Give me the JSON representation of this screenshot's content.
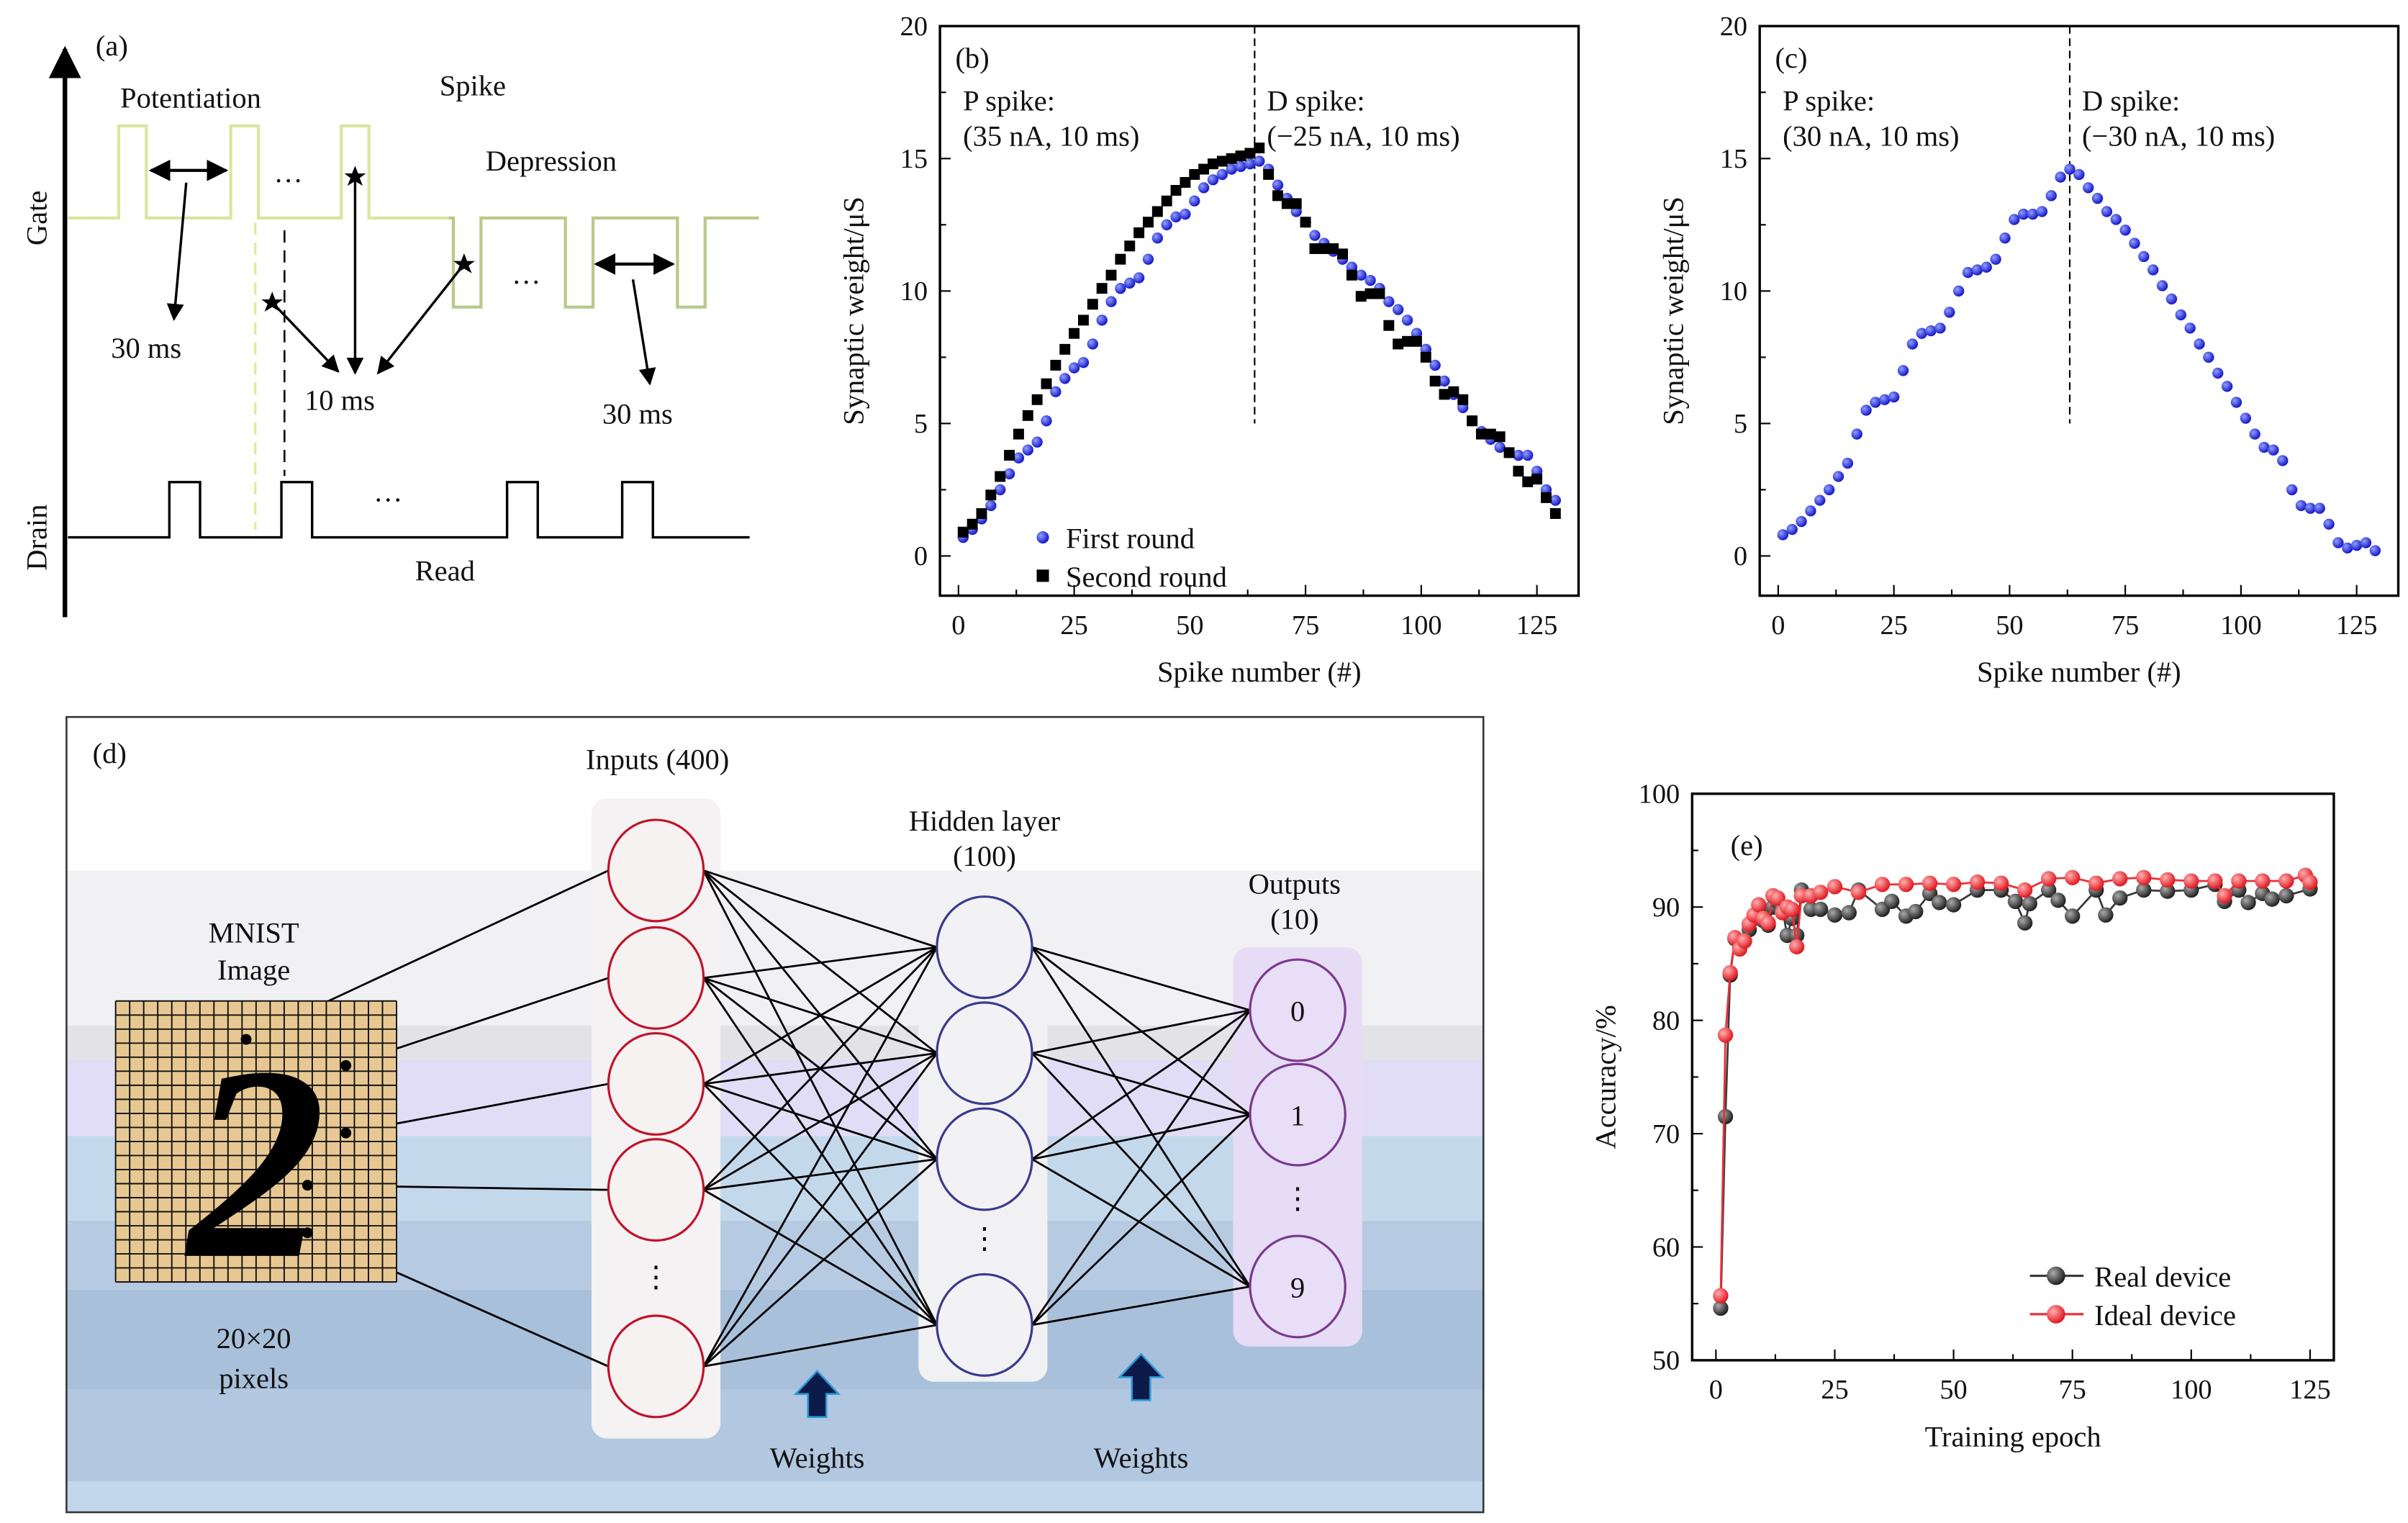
{
  "panel_a": {
    "label": "(a)",
    "gate": "Gate",
    "drain": "Drain",
    "potentiation": "Potentiation",
    "spike": "Spike",
    "depression": "Depression",
    "interval_p": "30 ms",
    "width": "10 ms",
    "interval_d": "30 ms",
    "read": "Read",
    "ellipsis": "···",
    "gate_color": "#d8e6a0",
    "gate_color_d": "#b9c98a"
  },
  "panel_d": {
    "label": "(d)",
    "inputs": "Inputs (400)",
    "hidden_1": "Hidden layer",
    "hidden_2": "(100)",
    "outputs_1": "Outputs",
    "outputs_2": "(10)",
    "mnist_1": "MNIST",
    "mnist_2": "Image",
    "digit": "2",
    "size_1": "20×20",
    "size_2": "pixels",
    "output_labels": [
      "0",
      "1",
      "9"
    ],
    "vdots": "⋮",
    "weights_labels": [
      "Weights",
      "Weights"
    ],
    "input_color": "#c0142a",
    "hidden_color": "#3a3a8c",
    "output_color": "#7a3a8c"
  },
  "chart_data": [
    {
      "id": "b",
      "type": "scatter",
      "panel_label": "(b)",
      "xlabel": "Spike number (#)",
      "ylabel": "Synaptic weight/μS",
      "xlim": [
        -4,
        134
      ],
      "ylim": [
        -1.5,
        20
      ],
      "xticks": [
        0,
        25,
        50,
        75,
        100,
        125
      ],
      "yticks": [
        0,
        5,
        10,
        15,
        20
      ],
      "divider_x": 64,
      "annotations": {
        "p_title": "P spike:",
        "p_value": "(35 nA, 10 ms)",
        "d_title": "D spike:",
        "d_value": "(−25 nA, 10 ms)",
        "p_color": "#e0141e",
        "d_color": "#1a1ad0"
      },
      "legend": "bottom-center",
      "series": [
        {
          "name": "First round",
          "marker": "circle",
          "color": "#2222dd",
          "x": [
            1,
            3,
            5,
            7,
            9,
            11,
            13,
            15,
            17,
            19,
            21,
            23,
            25,
            27,
            29,
            31,
            33,
            35,
            37,
            39,
            41,
            43,
            45,
            47,
            49,
            51,
            53,
            55,
            57,
            59,
            61,
            63,
            65,
            67,
            69,
            71,
            73,
            75,
            77,
            79,
            81,
            83,
            85,
            87,
            89,
            91,
            93,
            95,
            97,
            99,
            101,
            103,
            105,
            107,
            109,
            111,
            113,
            115,
            117,
            119,
            121,
            123,
            125,
            127,
            129
          ],
          "y": [
            0.7,
            1.0,
            1.4,
            1.9,
            2.5,
            3.1,
            3.7,
            4.0,
            4.3,
            5.1,
            6.2,
            6.7,
            7.1,
            7.3,
            8.0,
            8.9,
            9.6,
            10.1,
            10.3,
            10.5,
            11.2,
            12.0,
            12.5,
            12.8,
            12.9,
            13.4,
            13.9,
            14.2,
            14.4,
            14.6,
            14.7,
            14.8,
            14.9,
            14.6,
            14.0,
            13.5,
            13.0,
            12.6,
            12.1,
            11.8,
            11.5,
            11.2,
            10.9,
            10.6,
            10.4,
            10.1,
            9.6,
            9.3,
            8.9,
            8.4,
            7.8,
            7.2,
            6.6,
            6.1,
            5.6,
            5.1,
            4.7,
            4.4,
            4.1,
            3.9,
            3.8,
            3.8,
            3.2,
            2.5,
            2.1
          ]
        },
        {
          "name": "Second round",
          "marker": "square",
          "color": "#000000",
          "x": [
            1,
            3,
            5,
            7,
            9,
            11,
            13,
            15,
            17,
            19,
            21,
            23,
            25,
            27,
            29,
            31,
            33,
            35,
            37,
            39,
            41,
            43,
            45,
            47,
            49,
            51,
            53,
            55,
            57,
            59,
            61,
            63,
            65,
            67,
            69,
            71,
            73,
            75,
            77,
            79,
            81,
            83,
            85,
            87,
            89,
            91,
            93,
            95,
            97,
            99,
            101,
            103,
            105,
            107,
            109,
            111,
            113,
            115,
            117,
            119,
            121,
            123,
            125,
            127,
            129
          ],
          "y": [
            0.9,
            1.2,
            1.6,
            2.3,
            3.0,
            3.8,
            4.6,
            5.3,
            5.9,
            6.5,
            7.2,
            7.8,
            8.4,
            8.9,
            9.5,
            10.1,
            10.6,
            11.2,
            11.7,
            12.2,
            12.6,
            13.0,
            13.4,
            13.8,
            14.1,
            14.4,
            14.6,
            14.8,
            14.9,
            15.0,
            15.1,
            15.2,
            15.4,
            14.4,
            13.6,
            13.3,
            13.3,
            12.6,
            11.6,
            11.6,
            11.6,
            11.4,
            10.6,
            9.8,
            9.9,
            9.9,
            8.7,
            8.0,
            8.1,
            8.1,
            7.5,
            6.6,
            6.1,
            6.2,
            5.9,
            5.1,
            4.6,
            4.6,
            4.5,
            3.9,
            3.2,
            2.8,
            2.9,
            2.2,
            1.6
          ]
        }
      ]
    },
    {
      "id": "c",
      "type": "scatter",
      "panel_label": "(c)",
      "xlabel": "Spike number (#)",
      "ylabel": "Synaptic weight/μS",
      "xlim": [
        -4,
        134
      ],
      "ylim": [
        -1.5,
        20
      ],
      "xticks": [
        0,
        25,
        50,
        75,
        100,
        125
      ],
      "yticks": [
        0,
        5,
        10,
        15,
        20
      ],
      "divider_x": 63,
      "annotations": {
        "p_title": "P spike:",
        "p_value": "(30 nA, 10 ms)",
        "d_title": "D spike:",
        "d_value": "(−30 nA, 10 ms)",
        "p_color": "#e0141e",
        "d_color": "#1a1ad0"
      },
      "series": [
        {
          "name": "Synaptic weight",
          "marker": "circle",
          "color": "#2222dd",
          "x": [
            1,
            3,
            5,
            7,
            9,
            11,
            13,
            15,
            17,
            19,
            21,
            23,
            25,
            27,
            29,
            31,
            33,
            35,
            37,
            39,
            41,
            43,
            45,
            47,
            49,
            51,
            53,
            55,
            57,
            59,
            61,
            63,
            65,
            67,
            69,
            71,
            73,
            75,
            77,
            79,
            81,
            83,
            85,
            87,
            89,
            91,
            93,
            95,
            97,
            99,
            101,
            103,
            105,
            107,
            109,
            111,
            113,
            115,
            117,
            119,
            121,
            123,
            125,
            127,
            129
          ],
          "y": [
            0.8,
            1.0,
            1.3,
            1.7,
            2.1,
            2.5,
            3.0,
            3.5,
            4.6,
            5.5,
            5.8,
            5.9,
            6.0,
            7.0,
            8.0,
            8.4,
            8.5,
            8.6,
            9.2,
            10.0,
            10.7,
            10.8,
            10.9,
            11.2,
            12.0,
            12.7,
            12.9,
            12.9,
            13.0,
            13.6,
            14.3,
            14.6,
            14.4,
            13.9,
            13.5,
            13.0,
            12.7,
            12.3,
            11.8,
            11.3,
            10.8,
            10.2,
            9.7,
            9.1,
            8.6,
            8.0,
            7.5,
            6.9,
            6.4,
            5.8,
            5.2,
            4.6,
            4.1,
            4.0,
            3.6,
            2.5,
            1.9,
            1.8,
            1.8,
            1.2,
            0.5,
            0.3,
            0.4,
            0.5,
            0.2
          ]
        }
      ]
    },
    {
      "id": "e",
      "type": "line",
      "panel_label": "(e)",
      "xlabel": "Training epoch",
      "ylabel": "Accuracy/%",
      "xlim": [
        -5,
        130
      ],
      "ylim": [
        50,
        100
      ],
      "xticks": [
        0,
        25,
        50,
        75,
        100,
        125
      ],
      "yticks": [
        50,
        60,
        70,
        80,
        90,
        100
      ],
      "legend": "bottom-right",
      "series": [
        {
          "name": "Real device",
          "color": "#3a3a3a",
          "x": [
            1,
            2,
            3,
            4,
            5,
            6,
            7,
            8,
            9,
            10,
            11,
            12,
            13,
            14,
            15,
            16,
            17,
            18,
            20,
            22,
            25,
            28,
            30,
            35,
            37,
            40,
            42,
            45,
            47,
            50,
            55,
            60,
            63,
            65,
            66,
            70,
            72,
            75,
            80,
            82,
            85,
            90,
            95,
            100,
            105,
            107,
            110,
            112,
            115,
            117,
            120,
            125
          ],
          "y": [
            54.6,
            71.5,
            84.0,
            87.2,
            86.5,
            87.0,
            88.0,
            89.0,
            89.5,
            88.8,
            88.4,
            90.0,
            90.5,
            89.8,
            87.5,
            89.0,
            87.5,
            91.5,
            89.8,
            89.8,
            89.3,
            89.5,
            91.5,
            89.8,
            90.5,
            89.2,
            89.6,
            91.2,
            90.4,
            90.2,
            91.5,
            91.5,
            90.5,
            88.6,
            90.3,
            91.5,
            90.6,
            89.2,
            91.5,
            89.3,
            90.8,
            91.5,
            91.4,
            91.5,
            92.0,
            90.5,
            91.5,
            90.4,
            91.2,
            90.7,
            91.0,
            91.6
          ]
        },
        {
          "name": "Ideal device",
          "color": "#e8303a",
          "x": [
            1,
            2,
            3,
            4,
            5,
            6,
            7,
            8,
            9,
            10,
            11,
            12,
            13,
            14,
            15,
            16,
            17,
            18,
            20,
            22,
            25,
            30,
            35,
            40,
            45,
            50,
            55,
            60,
            65,
            70,
            75,
            80,
            85,
            90,
            95,
            100,
            105,
            107,
            110,
            115,
            120,
            124,
            125
          ],
          "y": [
            55.7,
            78.7,
            84.2,
            87.3,
            86.3,
            87.0,
            88.5,
            89.3,
            90.2,
            89.0,
            88.6,
            91.0,
            90.8,
            89.5,
            90.0,
            89.8,
            86.5,
            91.0,
            91.0,
            91.3,
            91.8,
            91.3,
            92.0,
            92.0,
            92.1,
            92.0,
            92.2,
            92.1,
            91.5,
            92.5,
            92.6,
            92.1,
            92.5,
            92.6,
            92.4,
            92.3,
            92.3,
            91.0,
            92.3,
            92.3,
            92.3,
            92.8,
            92.2
          ]
        }
      ]
    }
  ]
}
